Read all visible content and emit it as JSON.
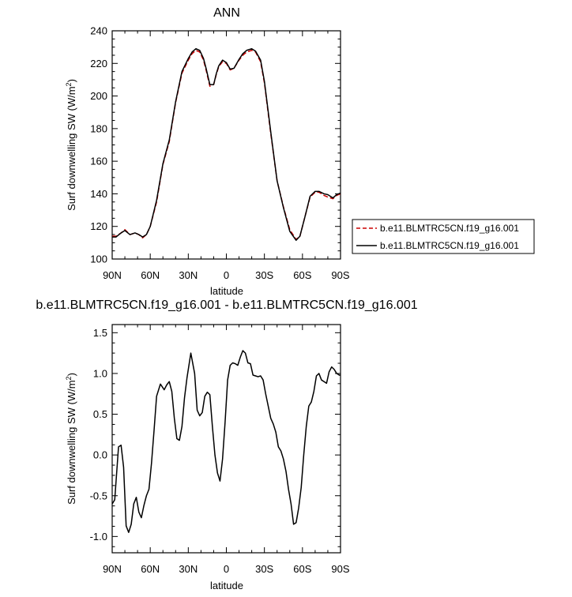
{
  "chart_data": [
    {
      "type": "line",
      "title": "ANN",
      "xlabel": "latitude",
      "ylabel": "Surf downwelling SW (W/m",
      "ylabel_sup": "2",
      "ylabel_end": ")",
      "xlim": [
        90,
        -90
      ],
      "ylim": [
        100,
        240
      ],
      "xticks": [
        90,
        60,
        30,
        0,
        -30,
        -60,
        -90
      ],
      "xticklabels": [
        "90N",
        "60N",
        "30N",
        "0",
        "30S",
        "60S",
        "90S"
      ],
      "yticks": [
        100,
        120,
        140,
        160,
        180,
        200,
        220,
        240
      ],
      "yticklabels": [
        "100",
        "120",
        "140",
        "160",
        "180",
        "200",
        "220",
        "240"
      ],
      "legend_placement": "right",
      "series": [
        {
          "name": "b.e11.BLMTRC5CN.f19_g16.001",
          "color": "#cc0000",
          "dash": "dashed",
          "x": [
            90,
            87,
            83,
            80,
            76,
            72,
            69,
            66,
            63,
            60,
            55,
            50,
            45,
            40,
            35,
            30,
            27,
            24,
            21,
            18,
            16,
            13,
            10,
            8,
            6,
            3,
            0,
            -3,
            -6,
            -10,
            -13,
            -16,
            -20,
            -23,
            -27,
            -30,
            -35,
            -40,
            -45,
            -50,
            -55,
            -58,
            -62,
            -66,
            -70,
            -73,
            -77,
            -80,
            -84,
            -87,
            -90
          ],
          "y": [
            114,
            114,
            116,
            118,
            115,
            116,
            115,
            113,
            115,
            120,
            135,
            158,
            172,
            196,
            214,
            222,
            226,
            228,
            227,
            222,
            216,
            206,
            207,
            213,
            218,
            221,
            220,
            216,
            217,
            222,
            225,
            227,
            228,
            227,
            221,
            208,
            177,
            148,
            132,
            118,
            112,
            114,
            126,
            138,
            141,
            141,
            139,
            138,
            137,
            139,
            140
          ]
        },
        {
          "name": "b.e11.BLMTRC5CN.f19_g16.001",
          "color": "#000000",
          "dash": "solid",
          "x": [
            90,
            87,
            83,
            80,
            76,
            72,
            69,
            66,
            63,
            60,
            55,
            50,
            45,
            40,
            35,
            30,
            27,
            24,
            21,
            18,
            16,
            13,
            10,
            8,
            6,
            3,
            0,
            -3,
            -6,
            -10,
            -13,
            -16,
            -20,
            -23,
            -27,
            -30,
            -35,
            -40,
            -45,
            -50,
            -55,
            -58,
            -62,
            -66,
            -70,
            -73,
            -77,
            -80,
            -84,
            -87,
            -90
          ],
          "y": [
            113.5,
            113.5,
            116,
            117.5,
            115,
            116,
            115,
            113.5,
            115,
            120,
            136,
            158.5,
            173,
            196.5,
            215,
            223,
            227,
            229,
            228,
            223,
            217,
            207,
            207,
            213.5,
            218.5,
            222,
            220.5,
            216.5,
            217,
            222.5,
            226,
            228,
            229,
            227.5,
            222,
            209,
            178,
            148,
            131.5,
            117,
            111.5,
            114,
            126,
            138.5,
            141.5,
            141.5,
            140,
            139.5,
            137.5,
            139.5,
            140.5
          ]
        }
      ]
    },
    {
      "type": "line",
      "title": "b.e11.BLMTRC5CN.f19_g16.001 - b.e11.BLMTRC5CN.f19_g16.001",
      "xlabel": "latitude",
      "ylabel": "Surf downwelling SW (W/m",
      "ylabel_sup": "2",
      "ylabel_end": ")",
      "xlim": [
        90,
        -90
      ],
      "ylim": [
        -1.2,
        1.6
      ],
      "xticks": [
        90,
        60,
        30,
        0,
        -30,
        -60,
        -90
      ],
      "xticklabels": [
        "90N",
        "60N",
        "30N",
        "0",
        "30S",
        "60S",
        "90S"
      ],
      "yticks": [
        -1.0,
        -0.5,
        0.0,
        0.5,
        1.0,
        1.5
      ],
      "yticklabels": [
        "-1.0",
        "-0.5",
        "0.0",
        "0.5",
        "1.0",
        "1.5"
      ],
      "series": [
        {
          "color": "#000000",
          "dash": "solid",
          "x": [
            90,
            88,
            85,
            83,
            81,
            79,
            77,
            75,
            73,
            71,
            69,
            67,
            65,
            63,
            61,
            59,
            57,
            55,
            52,
            49,
            47,
            45,
            43,
            41,
            39,
            37,
            35,
            33,
            31,
            28,
            25,
            23,
            21,
            19,
            17,
            15,
            13,
            11,
            9,
            7,
            5,
            3,
            1,
            -1,
            -3,
            -5,
            -7,
            -9,
            -11,
            -13,
            -15,
            -17,
            -19,
            -21,
            -23,
            -25,
            -27,
            -29,
            -31,
            -33,
            -35,
            -37,
            -39,
            -41,
            -43,
            -45,
            -47,
            -49,
            -51,
            -53,
            -55,
            -57,
            -59,
            -61,
            -63,
            -65,
            -67,
            -69,
            -71,
            -73,
            -75,
            -77,
            -79,
            -81,
            -83,
            -85,
            -87,
            -89,
            -90
          ],
          "y": [
            -0.6,
            -0.55,
            0.1,
            0.12,
            -0.15,
            -0.87,
            -0.95,
            -0.85,
            -0.6,
            -0.52,
            -0.7,
            -0.77,
            -0.62,
            -0.5,
            -0.42,
            -0.1,
            0.3,
            0.72,
            0.87,
            0.8,
            0.86,
            0.9,
            0.78,
            0.45,
            0.2,
            0.18,
            0.35,
            0.7,
            0.95,
            1.25,
            1.0,
            0.55,
            0.48,
            0.52,
            0.72,
            0.77,
            0.74,
            0.35,
            0.0,
            -0.22,
            -0.32,
            -0.05,
            0.4,
            0.92,
            1.1,
            1.13,
            1.12,
            1.1,
            1.2,
            1.28,
            1.25,
            1.13,
            1.12,
            0.98,
            0.97,
            0.96,
            0.97,
            0.92,
            0.75,
            0.6,
            0.45,
            0.38,
            0.28,
            0.1,
            0.05,
            -0.05,
            -0.2,
            -0.42,
            -0.6,
            -0.85,
            -0.83,
            -0.65,
            -0.4,
            0.0,
            0.35,
            0.6,
            0.65,
            0.78,
            0.97,
            1.0,
            0.92,
            0.9,
            0.88,
            1.02,
            1.08,
            1.05,
            1.0,
            0.98,
            0.98
          ]
        }
      ]
    }
  ]
}
